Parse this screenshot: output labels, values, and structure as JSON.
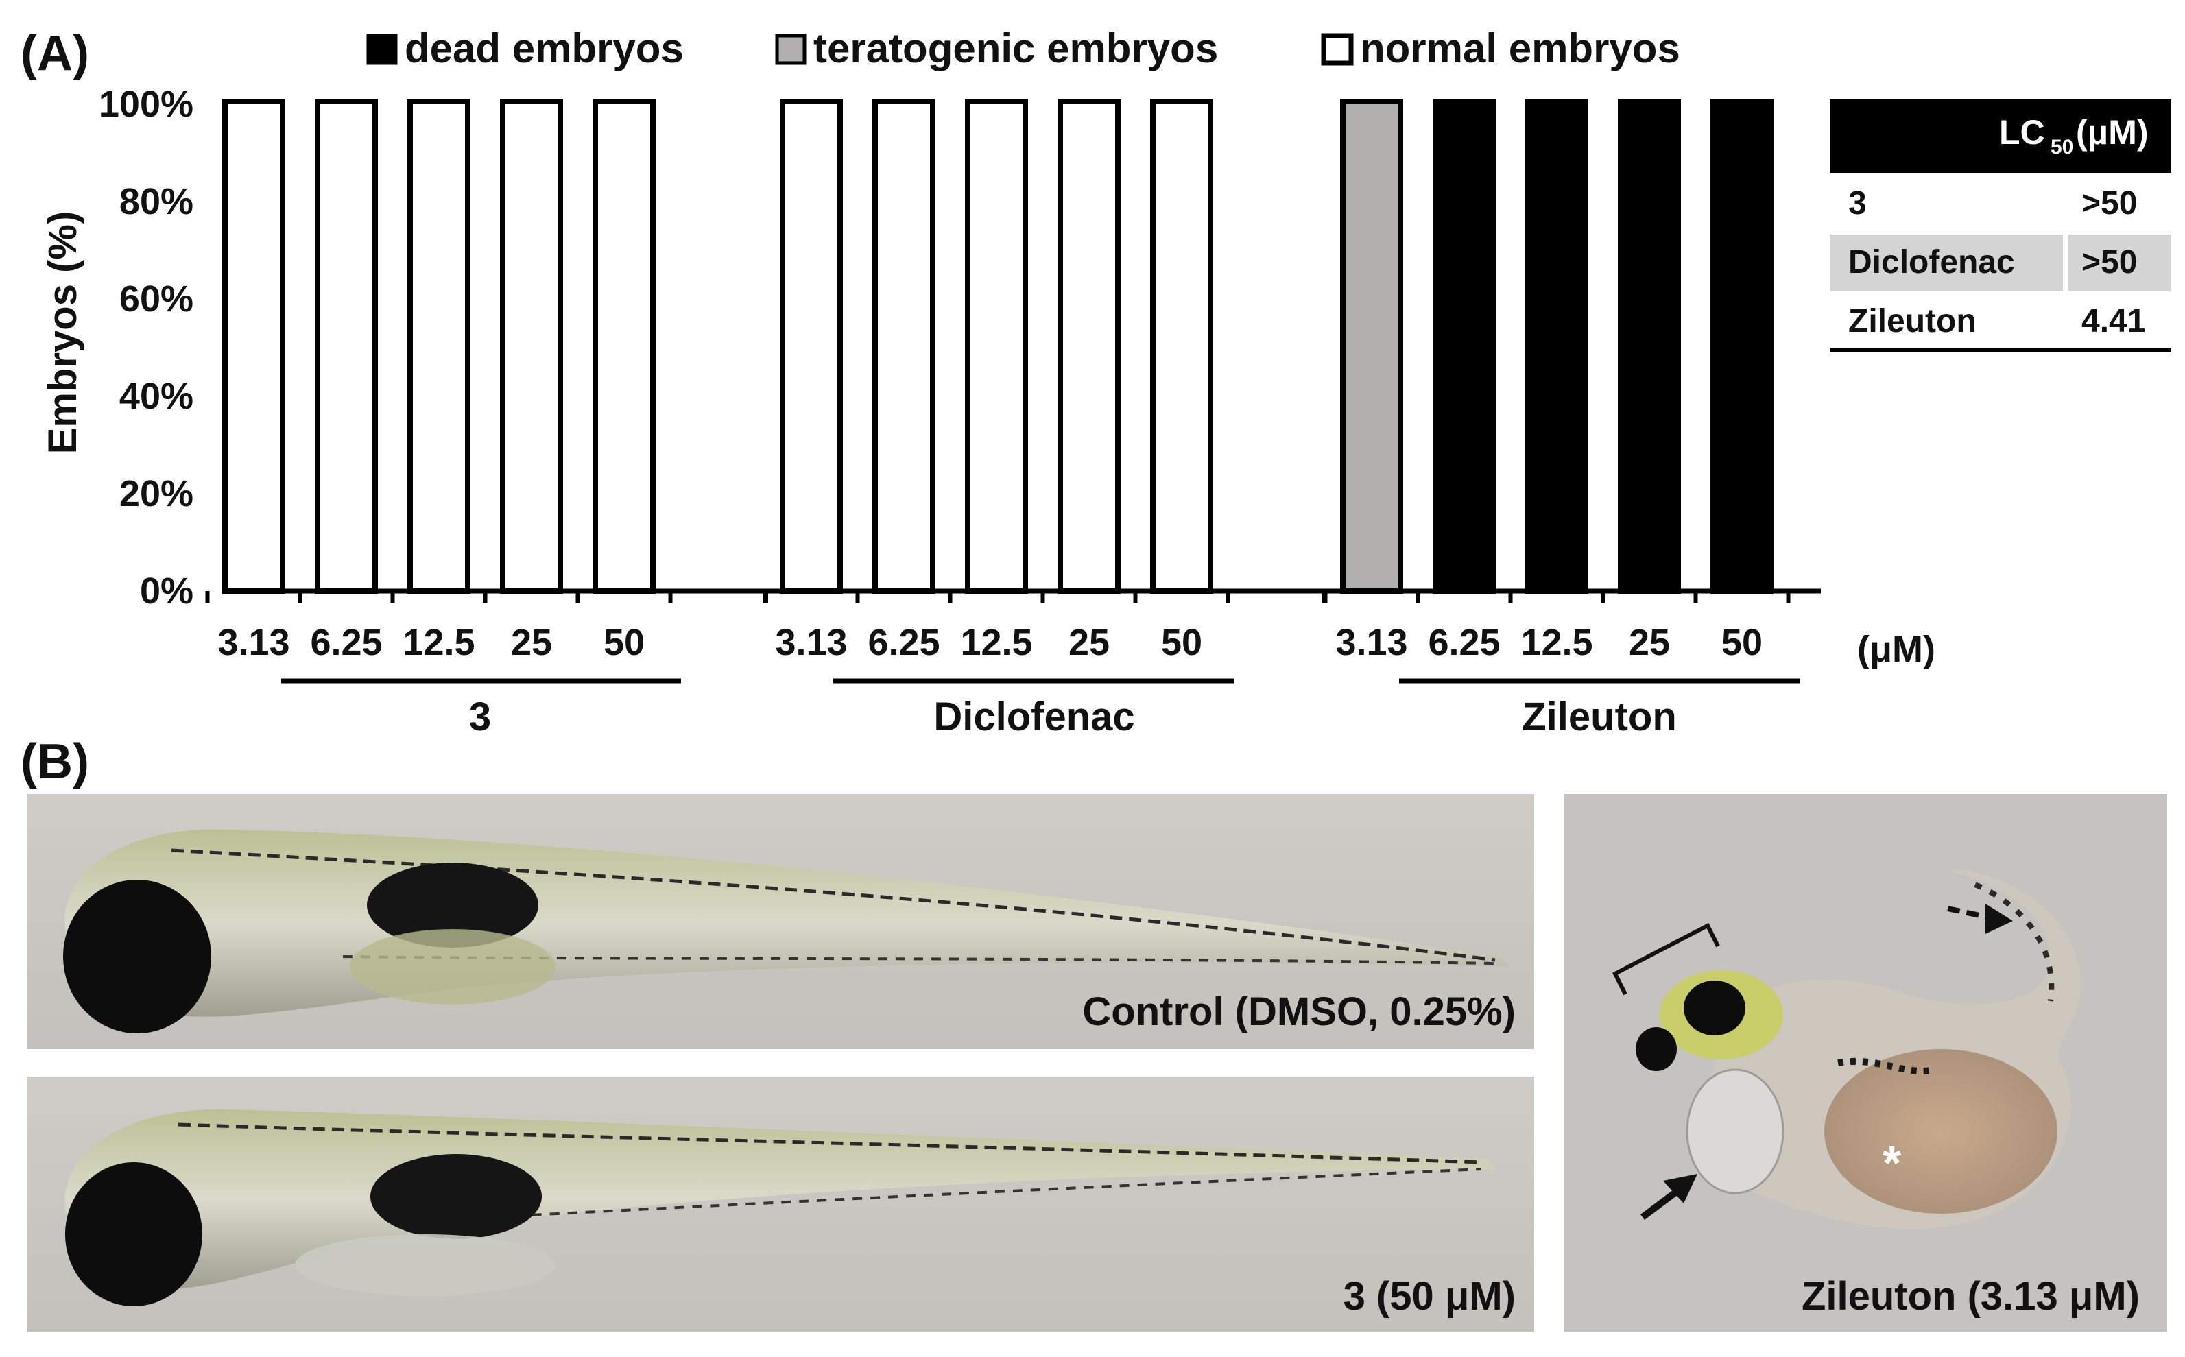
{
  "panels": {
    "a_label": "(A)",
    "b_label": "(B)"
  },
  "chart_data": {
    "type": "bar",
    "stacked": true,
    "ylabel": "Embryos (%)",
    "ylim": [
      0,
      100
    ],
    "y_ticks": [
      "0%",
      "20%",
      "40%",
      "60%",
      "80%",
      "100%"
    ],
    "unit_label": "(μM)",
    "legend": [
      {
        "name": "dead embryos",
        "color": "#000000"
      },
      {
        "name": "teratogenic embryos",
        "color": "#b2b0ae"
      },
      {
        "name": "normal embryos",
        "color": "#ffffff"
      }
    ],
    "groups": [
      {
        "name": "3",
        "concentrations": [
          "3.13",
          "6.25",
          "12.5",
          "25",
          "50"
        ],
        "dead": [
          0,
          0,
          0,
          0,
          0
        ],
        "teratogenic": [
          0,
          0,
          0,
          0,
          0
        ],
        "normal": [
          100,
          100,
          100,
          100,
          100
        ]
      },
      {
        "name": "Diclofenac",
        "concentrations": [
          "3.13",
          "6.25",
          "12.5",
          "25",
          "50"
        ],
        "dead": [
          0,
          0,
          0,
          0,
          0
        ],
        "teratogenic": [
          0,
          0,
          0,
          0,
          0
        ],
        "normal": [
          100,
          100,
          100,
          100,
          100
        ]
      },
      {
        "name": "Zileuton",
        "concentrations": [
          "3.13",
          "6.25",
          "12.5",
          "25",
          "50"
        ],
        "dead": [
          0,
          100,
          100,
          100,
          100
        ],
        "teratogenic": [
          100,
          0,
          0,
          0,
          0
        ],
        "normal": [
          0,
          0,
          0,
          0,
          0
        ]
      }
    ]
  },
  "lc50_table": {
    "header_main": "LC",
    "header_sub": "50",
    "header_unit": "(μM)",
    "rows": [
      {
        "compound": "3",
        "value": ">50"
      },
      {
        "compound": "Diclofenac",
        "value": ">50"
      },
      {
        "compound": "Zileuton",
        "value": "4.41"
      }
    ]
  },
  "photos": {
    "control": "Control (DMSO, 0.25%)",
    "compound3": "3 (50 μM)",
    "zileuton": "Zileuton (3.13 μM)",
    "asterisk": "*"
  }
}
